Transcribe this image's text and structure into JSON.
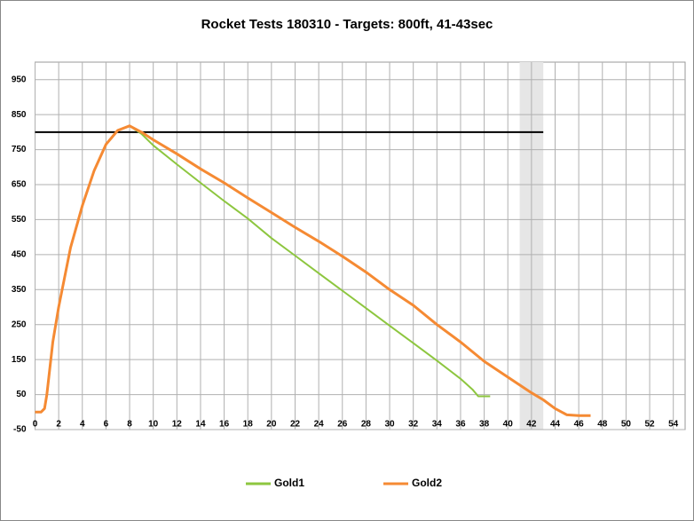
{
  "chart_data": {
    "type": "line",
    "title": "Rocket Tests 180310 - Targets: 800ft, 41-43sec",
    "xlim": [
      0,
      55
    ],
    "xticks": [
      0,
      2,
      4,
      6,
      8,
      10,
      12,
      14,
      16,
      18,
      20,
      22,
      24,
      26,
      28,
      30,
      32,
      34,
      36,
      38,
      40,
      42,
      44,
      46,
      48,
      50,
      52,
      54
    ],
    "ylim": [
      -50,
      1000
    ],
    "yticks": [
      -50,
      50,
      150,
      250,
      350,
      450,
      550,
      650,
      750,
      850,
      950
    ],
    "grid": true,
    "legend": "bottom",
    "target": {
      "value": 800,
      "x": [
        0,
        43
      ],
      "color": "#000000"
    },
    "target_window": {
      "x": [
        41,
        43
      ],
      "color": "#e6e6e6"
    },
    "series": [
      {
        "name": "Gold1",
        "color": "#8dc63f",
        "x": [
          0,
          0.5,
          0.8,
          1,
          1.5,
          2,
          3,
          4,
          5,
          6,
          7,
          8,
          9,
          10,
          12,
          14,
          16,
          18,
          20,
          22,
          24,
          26,
          28,
          30,
          32,
          34,
          36,
          37,
          37.5,
          38,
          38.5
        ],
        "values": [
          0,
          0,
          10,
          50,
          200,
          300,
          470,
          590,
          690,
          765,
          805,
          818,
          795,
          762,
          708,
          655,
          603,
          553,
          497,
          447,
          397,
          347,
          297,
          247,
          197,
          147,
          95,
          65,
          45,
          45,
          45
        ]
      },
      {
        "name": "Gold2",
        "color": "#f58a33",
        "x": [
          0,
          0.5,
          0.8,
          1,
          1.5,
          2,
          3,
          4,
          5,
          6,
          7,
          8,
          9,
          10,
          12,
          14,
          16,
          18,
          20,
          22,
          24,
          26,
          28,
          30,
          32,
          34,
          36,
          38,
          40,
          42,
          43,
          44,
          45,
          46,
          47
        ],
        "values": [
          0,
          0,
          10,
          50,
          200,
          300,
          470,
          590,
          690,
          765,
          805,
          818,
          800,
          778,
          738,
          695,
          655,
          612,
          570,
          528,
          488,
          445,
          400,
          350,
          305,
          250,
          200,
          145,
          100,
          55,
          35,
          10,
          -8,
          -10,
          -10
        ]
      }
    ]
  }
}
